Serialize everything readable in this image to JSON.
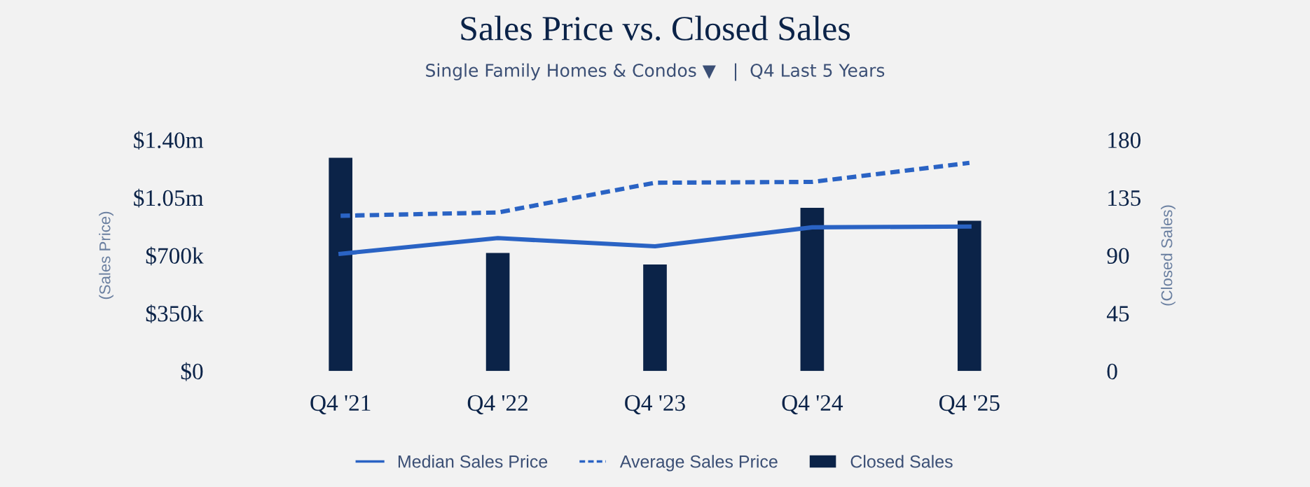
{
  "chart_data": {
    "type": "bar",
    "title": "Sales Price vs. Closed Sales",
    "subtitle": "Single Family Homes & Condos ▼   |  Q4 Last 5 Years",
    "categories": [
      "Q4 '21",
      "Q4 '22",
      "Q4 '23",
      "Q4 '24",
      "Q4 '25"
    ],
    "ylabel": "(Sales Price)",
    "y2label": "(Closed Sales)",
    "ylim": [
      0,
      1400000
    ],
    "yticks": [
      {
        "value": 0,
        "label": "$0"
      },
      {
        "value": 350000,
        "label": "$350k"
      },
      {
        "value": 700000,
        "label": "$700k"
      },
      {
        "value": 1050000,
        "label": "$1.05m"
      },
      {
        "value": 1400000,
        "label": "$1.40m"
      }
    ],
    "y2lim": [
      0,
      180
    ],
    "y2ticks": [
      0,
      45,
      90,
      135,
      180
    ],
    "grid": false,
    "legend": "bottom",
    "series": [
      {
        "name": "Median Sales Price",
        "type": "line",
        "line_style": "solid",
        "color": "#2a63c4",
        "values": [
          710000,
          805000,
          755000,
          870000,
          875000
        ]
      },
      {
        "name": "Average Sales Price",
        "type": "line",
        "line_style": "dashed",
        "color": "#2a63c4",
        "values": [
          940000,
          960000,
          1140000,
          1145000,
          1260000
        ]
      },
      {
        "name": "Closed Sales",
        "axis": "y2",
        "color": "#0b2348",
        "values": [
          166,
          92,
          83,
          127,
          117
        ]
      }
    ]
  }
}
